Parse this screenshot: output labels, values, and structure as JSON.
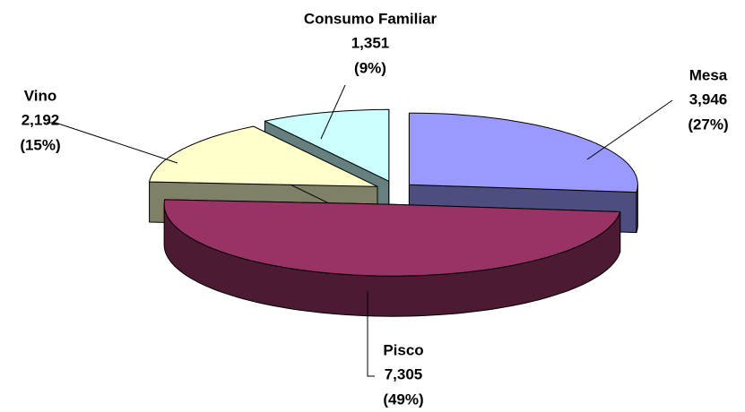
{
  "chart_data": {
    "type": "pie3d",
    "categories": [
      "Mesa",
      "Pisco",
      "Vino",
      "Consumo Familiar"
    ],
    "values": [
      3946,
      7305,
      2192,
      1351
    ],
    "value_labels": [
      "3,946",
      "7,305",
      "2,192",
      "1,351"
    ],
    "percent_labels": [
      "(27%)",
      "(49%)",
      "(15%)",
      "(9%)"
    ],
    "colors": [
      "#9999ff",
      "#993366",
      "#ffffcc",
      "#ccffff"
    ],
    "side_colors": [
      "#4d4d80",
      "#4d1a33",
      "#808066",
      "#668080"
    ]
  }
}
